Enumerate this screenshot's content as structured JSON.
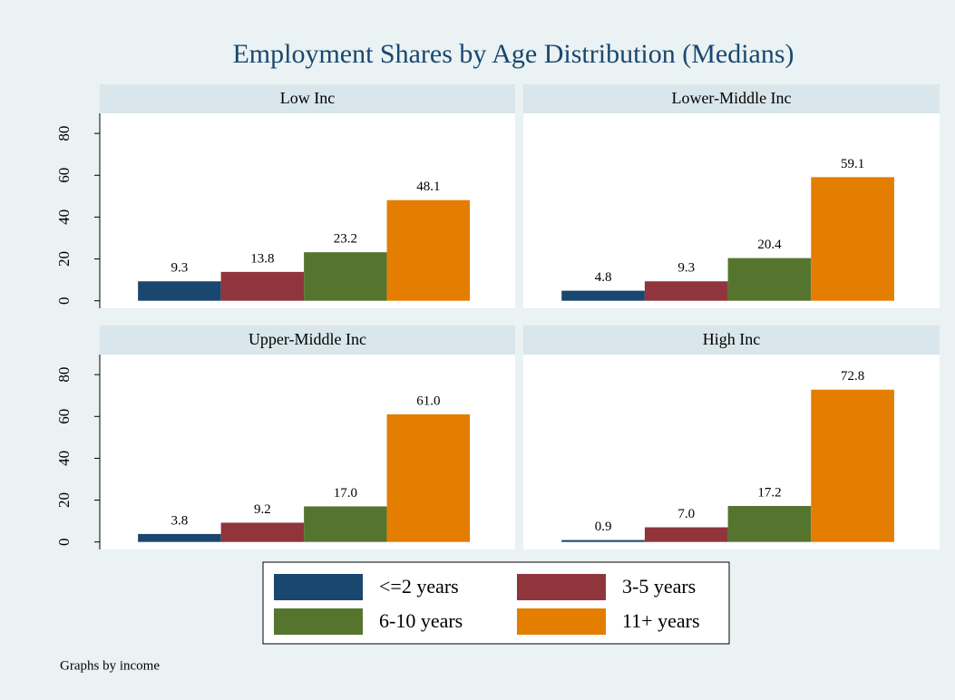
{
  "title": "Employment Shares by Age Distribution (Medians)",
  "note": "Graphs by income",
  "ylim": [
    -3.6,
    89.6
  ],
  "yticks": [
    0,
    20,
    40,
    60,
    80
  ],
  "chart_data": [
    {
      "type": "bar",
      "title": "Low Inc",
      "categories": [
        null
      ],
      "series": [
        {
          "name": "<=2 years",
          "color": "#1a476f",
          "values": [
            9.3
          ],
          "value_labels": [
            "9.3"
          ]
        },
        {
          "name": "3-5 years",
          "color": "#90353b",
          "values": [
            13.8
          ],
          "value_labels": [
            "13.8"
          ]
        },
        {
          "name": "6-10 years",
          "color": "#55752f",
          "values": [
            23.2
          ],
          "value_labels": [
            "23.2"
          ]
        },
        {
          "name": "11+ years",
          "color": "#e37e00",
          "values": [
            48.1
          ],
          "value_labels": [
            "48.1"
          ]
        }
      ]
    },
    {
      "type": "bar",
      "title": "Lower-Middle Inc",
      "categories": [
        null
      ],
      "series": [
        {
          "name": "<=2 years",
          "color": "#1a476f",
          "values": [
            4.8
          ],
          "value_labels": [
            "4.8"
          ]
        },
        {
          "name": "3-5 years",
          "color": "#90353b",
          "values": [
            9.3
          ],
          "value_labels": [
            "9.3"
          ]
        },
        {
          "name": "6-10 years",
          "color": "#55752f",
          "values": [
            20.4
          ],
          "value_labels": [
            "20.4"
          ]
        },
        {
          "name": "11+ years",
          "color": "#e37e00",
          "values": [
            59.1
          ],
          "value_labels": [
            "59.1"
          ]
        }
      ]
    },
    {
      "type": "bar",
      "title": "Upper-Middle Inc",
      "categories": [
        null
      ],
      "series": [
        {
          "name": "<=2 years",
          "color": "#1a476f",
          "values": [
            3.8
          ],
          "value_labels": [
            "3.8"
          ]
        },
        {
          "name": "3-5 years",
          "color": "#90353b",
          "values": [
            9.2
          ],
          "value_labels": [
            "9.2"
          ]
        },
        {
          "name": "6-10 years",
          "color": "#55752f",
          "values": [
            17.0
          ],
          "value_labels": [
            "17.0"
          ]
        },
        {
          "name": "11+ years",
          "color": "#e37e00",
          "values": [
            61.0
          ],
          "value_labels": [
            "61.0"
          ]
        }
      ]
    },
    {
      "type": "bar",
      "title": "High Inc",
      "categories": [
        null
      ],
      "series": [
        {
          "name": "<=2 years",
          "color": "#1a476f",
          "values": [
            0.9
          ],
          "value_labels": [
            "0.9"
          ]
        },
        {
          "name": "3-5 years",
          "color": "#90353b",
          "values": [
            7.0
          ],
          "value_labels": [
            "7.0"
          ]
        },
        {
          "name": "6-10 years",
          "color": "#55752f",
          "values": [
            17.2
          ],
          "value_labels": [
            "17.2"
          ]
        },
        {
          "name": "11+ years",
          "color": "#e37e00",
          "values": [
            72.8
          ],
          "value_labels": [
            "72.8"
          ]
        }
      ]
    }
  ]
}
